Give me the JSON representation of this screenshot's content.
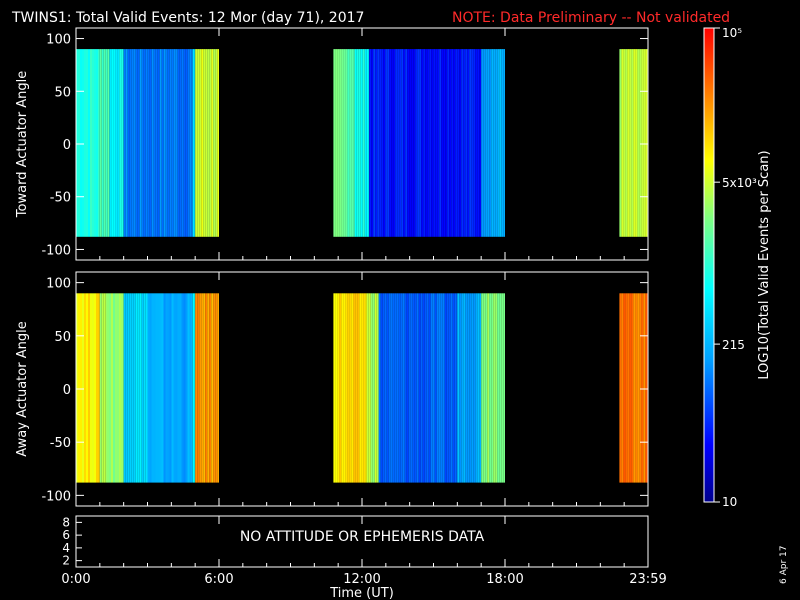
{
  "header": {
    "title": "TWINS1: Total Valid Events: 12 Mor (day  71), 2017",
    "note": "NOTE: Data Preliminary -- Not validated"
  },
  "panels": {
    "toward": {
      "ylabel": "Toward Actuator Angle",
      "yticks": [
        "100",
        "50",
        "0",
        "-50",
        "-100"
      ]
    },
    "away": {
      "ylabel": "Away Actuator Angle",
      "yticks": [
        "100",
        "50",
        "0",
        "-50",
        "-100"
      ]
    },
    "ephemeris": {
      "yticks": [
        "8",
        "6",
        "4",
        "2"
      ],
      "message": "NO ATTITUDE OR EPHEMERIS DATA"
    }
  },
  "xaxis": {
    "label": "Time (UT)",
    "ticks": [
      "0:00",
      "6:00",
      "12:00",
      "18:00",
      "23:59"
    ]
  },
  "colorbar": {
    "label": "LOG10(Total Valid Events per Scan)",
    "ticks": [
      "10",
      "215",
      "5x10³",
      "10⁵"
    ],
    "colors": [
      "#00008c",
      "#0000ff",
      "#00a0ff",
      "#00ffff",
      "#80ff80",
      "#ffff00",
      "#ff8000",
      "#ff0000"
    ]
  },
  "date_stamp": "6 Apr 17",
  "chart_data": [
    {
      "type": "heatmap",
      "name": "Toward Actuator Angle",
      "x_unit": "hours UT",
      "y_unit": "degrees",
      "xlim": [
        0,
        24
      ],
      "ylim": [
        -110,
        110
      ],
      "data_ylim": [
        -88,
        90
      ],
      "scale": "log",
      "zlim": [
        10,
        100000
      ],
      "segments": [
        {
          "start": 0.0,
          "end": 6.0,
          "columns": [
            [
              0.0,
              1.0,
              900
            ],
            [
              1.0,
              1.4,
              1500
            ],
            [
              1.4,
              2.0,
              600
            ],
            [
              2.0,
              4.9,
              110
            ],
            [
              4.9,
              5.0,
              300
            ],
            [
              5.0,
              6.0,
              5000
            ]
          ]
        },
        {
          "start": 10.8,
          "end": 18.0,
          "columns": [
            [
              10.8,
              11.7,
              1800
            ],
            [
              11.7,
              12.3,
              700
            ],
            [
              12.3,
              17.0,
              40
            ],
            [
              17.0,
              18.0,
              200
            ]
          ]
        },
        {
          "start": 22.8,
          "end": 24.0,
          "columns": [
            [
              22.8,
              24.0,
              4000
            ]
          ]
        }
      ]
    },
    {
      "type": "heatmap",
      "name": "Away Actuator Angle",
      "x_unit": "hours UT",
      "y_unit": "degrees",
      "xlim": [
        0,
        24
      ],
      "ylim": [
        -110,
        110
      ],
      "data_ylim": [
        -88,
        90
      ],
      "scale": "log",
      "zlim": [
        10,
        100000
      ],
      "segments": [
        {
          "start": 0.0,
          "end": 6.0,
          "columns": [
            [
              0.0,
              1.0,
              9000
            ],
            [
              1.0,
              1.3,
              4000
            ],
            [
              1.3,
              2.0,
              3000
            ],
            [
              2.0,
              3.0,
              400
            ],
            [
              3.0,
              4.9,
              180
            ],
            [
              4.9,
              5.0,
              800
            ],
            [
              5.0,
              6.0,
              20000
            ]
          ]
        },
        {
          "start": 10.8,
          "end": 18.0,
          "columns": [
            [
              10.8,
              12.2,
              10000
            ],
            [
              12.2,
              12.7,
              4000
            ],
            [
              12.7,
              16.0,
              80
            ],
            [
              16.0,
              17.0,
              200
            ],
            [
              17.0,
              18.0,
              3000
            ]
          ]
        },
        {
          "start": 22.8,
          "end": 24.0,
          "columns": [
            [
              22.8,
              24.0,
              30000
            ]
          ]
        }
      ]
    }
  ]
}
